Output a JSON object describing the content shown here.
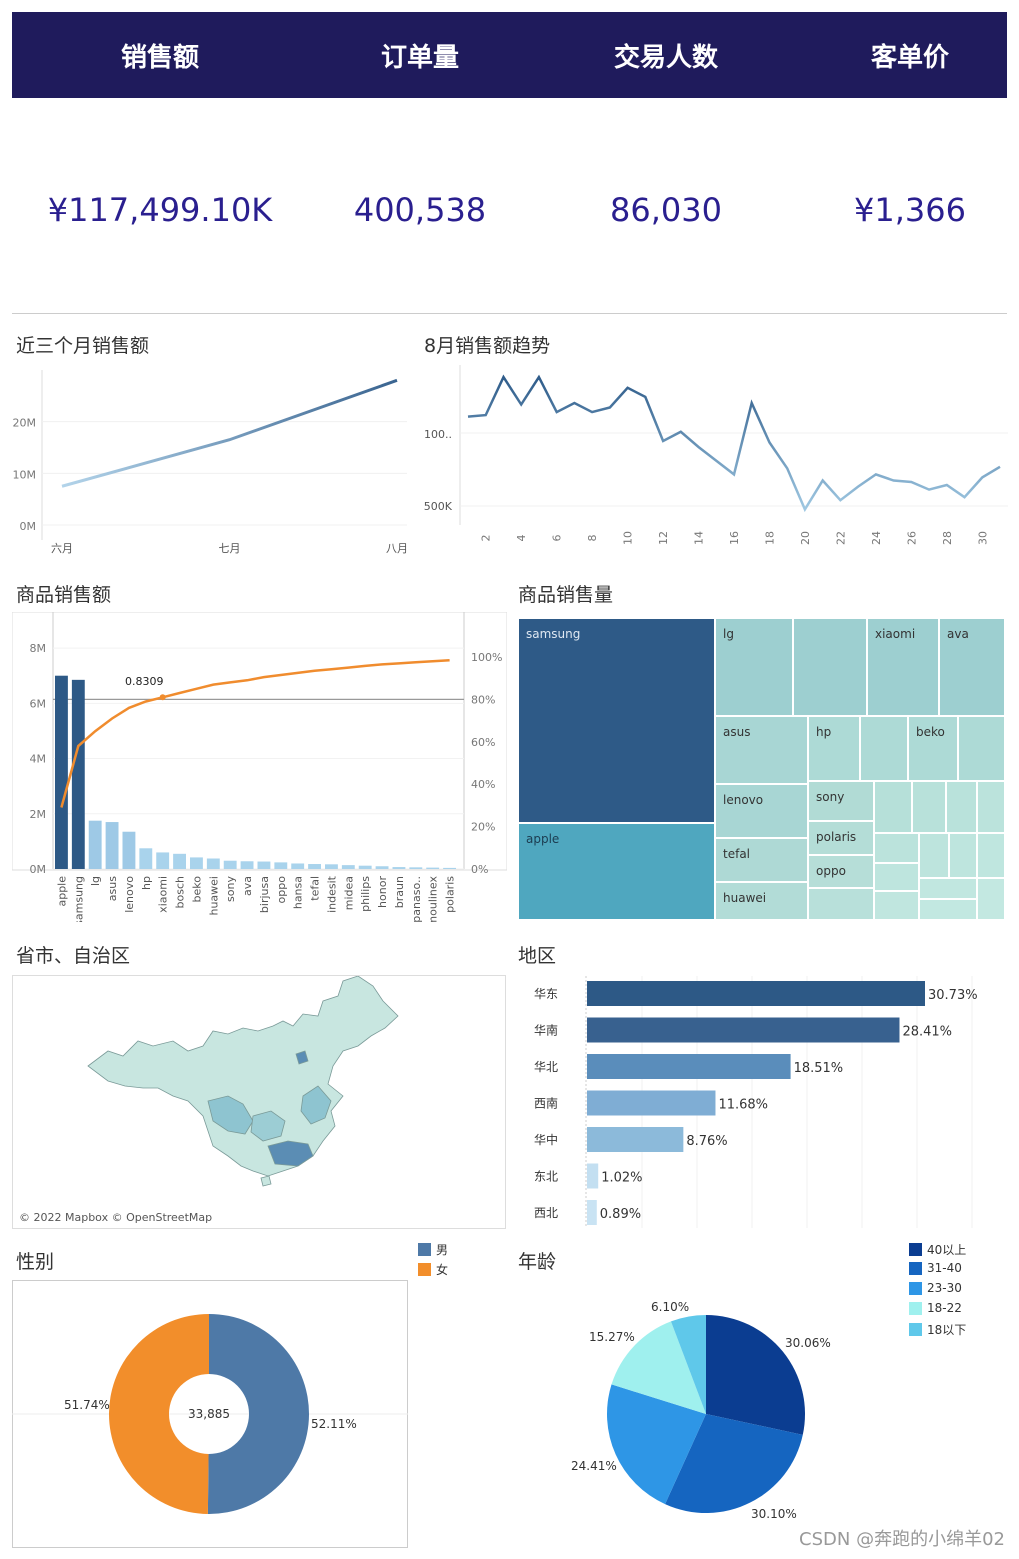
{
  "kpis": [
    {
      "label": "销售额",
      "value": "¥117,499.10K"
    },
    {
      "label": "订单量",
      "value": "400,538"
    },
    {
      "label": "交易人数",
      "value": "86,030"
    },
    {
      "label": "客单价",
      "value": "¥1,366"
    }
  ],
  "titles": {
    "three_month": "近三个月销售额",
    "aug_trend": "8月销售额趋势",
    "product_sales": "商品销售额",
    "product_volume": "商品销售量",
    "province": "省市、自治区",
    "region": "地区",
    "gender": "性别",
    "age": "年龄"
  },
  "map": {
    "credit": "© 2022 Mapbox © OpenStreetMap"
  },
  "watermark": "CSDN @奔跑的小绵羊02",
  "colors": {
    "kpi_bar": "#1f1b5c",
    "kpi_value": "#2a1f8f",
    "line_dark": "#3a6490",
    "bar_dark": "#2d5986",
    "pareto_line": "#f08c2e",
    "male": "#4e79a7",
    "female": "#f28e2b"
  },
  "chart_data": [
    {
      "id": "three_month",
      "type": "line",
      "categories": [
        "六月",
        "七月",
        "八月"
      ],
      "values": [
        7.5,
        16.5,
        28
      ],
      "y_ticks": [
        "0M",
        "10M",
        "20M"
      ],
      "ylim": [
        0,
        30
      ]
    },
    {
      "id": "aug_trend",
      "type": "line",
      "x": [
        1,
        2,
        3,
        4,
        5,
        6,
        7,
        8,
        9,
        10,
        11,
        12,
        13,
        14,
        15,
        16,
        17,
        18,
        19,
        20,
        21,
        22,
        23,
        24,
        25,
        26,
        27,
        28,
        29,
        30,
        31
      ],
      "values": [
        118,
        119,
        144,
        126,
        144,
        121,
        127,
        121,
        124,
        137,
        131,
        102,
        108,
        98,
        89,
        80,
        127,
        101,
        84,
        57,
        76,
        63,
        72,
        80,
        76,
        75,
        70,
        73,
        65,
        78,
        85
      ],
      "x_ticks": [
        "2",
        "4",
        "6",
        "8",
        "10",
        "12",
        "14",
        "16",
        "18",
        "20",
        "22",
        "24",
        "26",
        "28",
        "30"
      ],
      "y_ticks": [
        "100..",
        "500K"
      ]
    },
    {
      "id": "product_sales",
      "type": "bar",
      "categories": [
        "apple",
        "samsung",
        "lg",
        "asus",
        "lenovo",
        "hp",
        "xiaomi",
        "bosch",
        "beko",
        "huawei",
        "sony",
        "ava",
        "birjusa",
        "oppo",
        "hansa",
        "tefal",
        "indesit",
        "midea",
        "philips",
        "honor",
        "braun",
        "panaso..",
        "moulinex",
        "polaris"
      ],
      "values": [
        7.0,
        6.85,
        1.75,
        1.7,
        1.35,
        0.75,
        0.6,
        0.55,
        0.42,
        0.38,
        0.3,
        0.28,
        0.27,
        0.24,
        0.2,
        0.18,
        0.17,
        0.14,
        0.12,
        0.1,
        0.07,
        0.06,
        0.05,
        0.04
      ],
      "cumulative_pct": [
        29,
        58,
        65,
        71,
        76,
        79,
        81,
        83,
        85,
        87,
        88,
        89,
        90.5,
        91.5,
        92.5,
        93.5,
        94.2,
        95,
        95.8,
        96.5,
        97,
        97.5,
        98,
        98.5
      ],
      "y_ticks": [
        "0M",
        "2M",
        "4M",
        "6M",
        "8M"
      ],
      "y2_ticks": [
        "0%",
        "20%",
        "40%",
        "60%",
        "80%",
        "100%"
      ],
      "reference_label": "0.8309"
    },
    {
      "id": "product_volume",
      "type": "treemap",
      "labels": [
        "samsung",
        "apple",
        "lg",
        "xiaomi",
        "ava",
        "asus",
        "hp",
        "beko",
        "lenovo",
        "sony",
        "polaris",
        "tefal",
        "oppo",
        "huawei"
      ]
    },
    {
      "id": "region",
      "type": "bar",
      "categories": [
        "华东",
        "华南",
        "华北",
        "西南",
        "华中",
        "东北",
        "西北"
      ],
      "values": [
        30.73,
        28.41,
        18.51,
        11.68,
        8.76,
        1.02,
        0.89
      ],
      "labels": [
        "30.73%",
        "28.41%",
        "18.51%",
        "11.68%",
        "8.76%",
        "1.02%",
        "0.89%"
      ]
    },
    {
      "id": "gender",
      "type": "pie",
      "categories": [
        "男",
        "女"
      ],
      "values": [
        52.11,
        51.74
      ],
      "labels": [
        "52.11%",
        "51.74%"
      ],
      "center_label": "33,885"
    },
    {
      "id": "age",
      "type": "pie",
      "categories": [
        "40以上",
        "31-40",
        "23-30",
        "18-22",
        "18以下"
      ],
      "values": [
        30.06,
        30.1,
        24.41,
        15.27,
        6.1
      ],
      "labels": [
        "30.06%",
        "30.10%",
        "24.41%",
        "15.27%",
        "6.10%"
      ],
      "colors": [
        "#0b3d91",
        "#1565c0",
        "#2e96e6",
        "#9ff0ee",
        "#5fc8ea"
      ]
    }
  ]
}
